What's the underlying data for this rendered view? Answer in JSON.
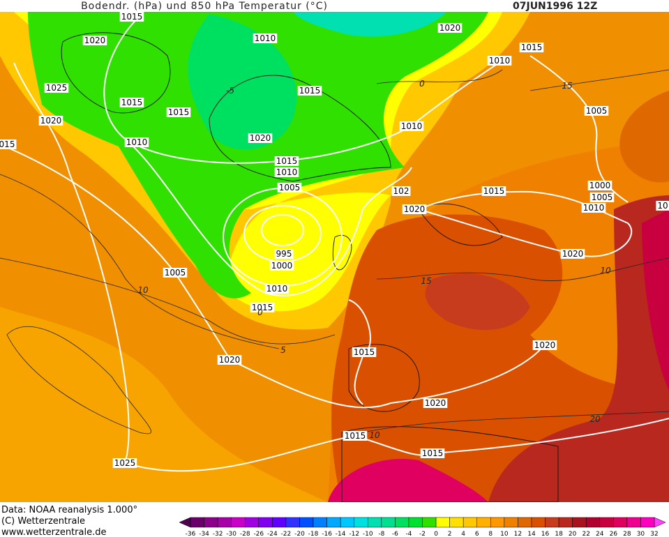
{
  "header": {
    "title": "Bodendr. (hPa) und 850 hPa Temperatur (°C)",
    "date": "07JUN1996 12Z"
  },
  "isobar_labels": [
    "1015",
    "1020",
    "1010",
    "1020",
    "1015",
    "1010",
    "1025",
    "1015",
    "1015",
    "1015",
    "1005",
    "1020",
    "1010",
    "1020",
    "1010",
    "1015",
    "1010",
    "1005",
    "102",
    "1015",
    "1000",
    "1005",
    "1010",
    "1020",
    "995",
    "1000",
    "1005",
    "1020",
    "1010",
    "1015",
    "1015",
    "1020",
    "1020",
    "1020",
    "1015",
    "1015",
    "1025",
    "015",
    "10"
  ],
  "isotherm_labels": [
    "-5",
    "0",
    "15",
    "10",
    "5",
    "15",
    "10",
    "20",
    "10",
    "0"
  ],
  "footer": {
    "lines": [
      "Data: NOAA reanalysis 1.000°",
      "(C) Wetterzentrale",
      "www.wetterzentrale.de"
    ]
  },
  "colorbar": {
    "labels": [
      -36,
      -34,
      -32,
      -30,
      -28,
      -26,
      -24,
      -22,
      -20,
      -18,
      -16,
      -14,
      -12,
      -10,
      -8,
      -6,
      -4,
      -2,
      0,
      2,
      4,
      6,
      8,
      10,
      12,
      14,
      16,
      18,
      20,
      22,
      24,
      26,
      28,
      30,
      32
    ],
    "colors": [
      "#500050",
      "#6a006a",
      "#8a008a",
      "#a800a8",
      "#c800c8",
      "#a000e0",
      "#8000f0",
      "#6000ff",
      "#3030ff",
      "#0050ff",
      "#0080ff",
      "#00a8ff",
      "#00c8ff",
      "#00e0e0",
      "#00e0b0",
      "#00e090",
      "#00e060",
      "#00e030",
      "#30e000",
      "#ffff00",
      "#ffe000",
      "#ffc800",
      "#ffb000",
      "#ff9800",
      "#f08000",
      "#e06800",
      "#d85000",
      "#c83c1e",
      "#b8281e",
      "#a8141e",
      "#b00030",
      "#c80040",
      "#e00060",
      "#f00090",
      "#ff00c0",
      "#ff40ff"
    ]
  }
}
